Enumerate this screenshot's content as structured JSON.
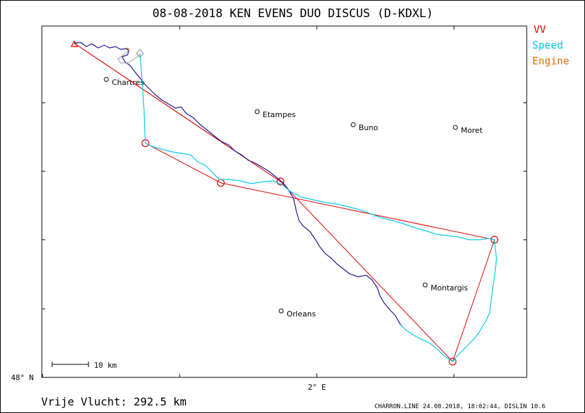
{
  "header": {
    "title": "08-08-2018   KEN EVENS   DUO DISCUS (D-KDXL)"
  },
  "legend": {
    "items": [
      {
        "label": "VV",
        "color": "#e00000"
      },
      {
        "label": "Speed",
        "color": "#00c8e8"
      },
      {
        "label": "Engine",
        "color": "#e07000"
      }
    ]
  },
  "map": {
    "cities": [
      {
        "name": "Chartres"
      },
      {
        "name": "Etampes"
      },
      {
        "name": "Buno"
      },
      {
        "name": "Moret"
      },
      {
        "name": "Montargis"
      },
      {
        "name": "Orleans"
      }
    ],
    "lat_label": "48° N",
    "lon_label": "2° E",
    "scale_label": "10 km"
  },
  "footer": {
    "distance_text": "Vrije Vlucht:  292.5 km",
    "credit": "CHARRON.LINE 24.08.2018, 18:02:44, DISLIN 10.6"
  }
}
